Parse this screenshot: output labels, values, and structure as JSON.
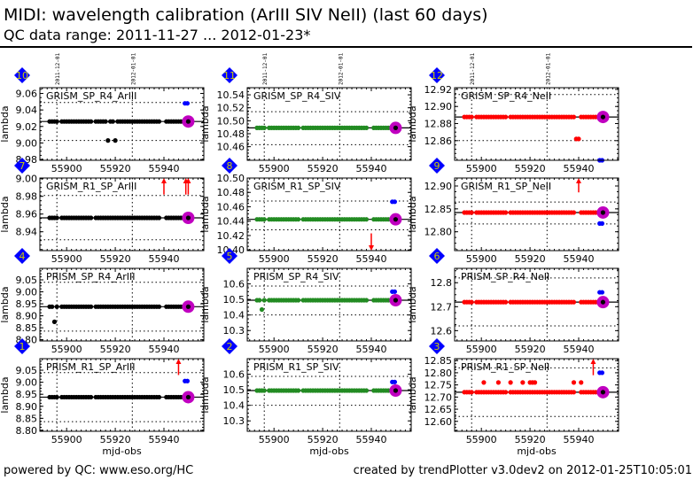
{
  "header": {
    "title": "MIDI: wavelength calibration (ArIII SIV NeII) (last 60 days)",
    "subtitle": "QC data range: 2011-11-27 ... 2012-01-23*"
  },
  "footer": {
    "left": "powered by QC: www.eso.org/HC",
    "right": "created by trendPlotter v3.0dev2 on 2012-01-25T10:05:01"
  },
  "colors": {
    "ArIII": "#000000",
    "SIV": "#228b22",
    "NeII": "#ff0000",
    "latest": "#c000c0",
    "reference": "#0000ff",
    "outlier_arrow": "#ff0000",
    "badge": "#0000ff",
    "badge_text": "#cccc00"
  },
  "chart_data": {
    "type": "scatter",
    "xlabel": "mjd-obs",
    "ylabel": "lambda",
    "xlim": [
      55889,
      55956.4
    ],
    "xticks": [
      55900,
      55920,
      55940
    ],
    "date_markers": [
      {
        "mjd": 55896,
        "label": "2011-12-01"
      },
      {
        "mjd": 55927,
        "label": "2012-01-01"
      }
    ],
    "days": [
      55893,
      55894,
      55895,
      55896,
      55898,
      55899,
      55900,
      55901,
      55902,
      55903,
      55904,
      55905,
      55906,
      55907,
      55908,
      55909,
      55910,
      55912,
      55913,
      55914,
      55915,
      55916,
      55917,
      55918,
      55919,
      55920,
      55921,
      55922,
      55923,
      55924,
      55925,
      55926,
      55927,
      55928,
      55929,
      55930,
      55931,
      55932,
      55933,
      55934,
      55935,
      55936,
      55937,
      55938,
      55941,
      55942,
      55943,
      55944,
      55945,
      55946,
      55947,
      55948,
      55949,
      55950
    ],
    "panels": [
      {
        "id": "10",
        "title": "GRISM_SP_R4_ArIII",
        "line": "ArIII",
        "ylim": [
          8.979,
          9.067
        ],
        "yticks": [
          8.98,
          9.0,
          9.02,
          9.04,
          9.06
        ],
        "ytick_labels": [
          "8.98",
          "9.00",
          "9.02",
          "9.04",
          "9.06"
        ],
        "value": 9.026,
        "thresholds": [
          9.003,
          9.049
        ],
        "reference": 9.048,
        "outliers": [
          [
            55917,
            9.003
          ],
          [
            55920,
            9.003
          ]
        ],
        "arrows": []
      },
      {
        "id": "11",
        "title": "GRISM_SP_R4_SIV",
        "line": "SIV",
        "ylim": [
          10.439,
          10.551
        ],
        "yticks": [
          10.46,
          10.48,
          10.5,
          10.52,
          10.54
        ],
        "ytick_labels": [
          "10.46",
          "10.48",
          "10.50",
          "10.52",
          "10.54"
        ],
        "value": 10.489,
        "thresholds": [
          10.463,
          10.514
        ],
        "reference": null,
        "outliers": [],
        "arrows": []
      },
      {
        "id": "12",
        "title": "GRISM_SP_R4_NeII",
        "line": "NeII",
        "ylim": [
          12.837,
          12.922
        ],
        "yticks": [
          12.86,
          12.88,
          12.9,
          12.92
        ],
        "ytick_labels": [
          "12.86",
          "12.88",
          "12.90",
          "12.92"
        ],
        "value": 12.8877,
        "thresholds": [
          12.86,
          12.914
        ],
        "reference": 12.837,
        "outliers": [
          [
            55939,
            12.862
          ],
          [
            55940,
            12.862
          ]
        ],
        "arrows": []
      },
      {
        "id": "7",
        "title": "GRISM_R1_SP_ArIII",
        "line": "ArIII",
        "ylim": [
          8.9187,
          9.0007
        ],
        "yticks": [
          8.94,
          8.96,
          8.98,
          9.0
        ],
        "ytick_labels": [
          "8.94",
          "8.96",
          "8.98",
          "9.00"
        ],
        "value": 8.9557,
        "thresholds": [
          8.931,
          8.981
        ],
        "reference": null,
        "outliers": [],
        "arrows": [
          {
            "mjd": 55940,
            "from": 8.982,
            "dir": "up"
          },
          {
            "mjd": 55949,
            "from": 8.982,
            "dir": "up"
          },
          {
            "mjd": 55950,
            "from": 8.982,
            "dir": "up"
          }
        ]
      },
      {
        "id": "8",
        "title": "GRISM_R1_SP_SIV",
        "line": "SIV",
        "ylim": [
          10.399,
          10.5
        ],
        "yticks": [
          10.4,
          10.42,
          10.44,
          10.46,
          10.48,
          10.5
        ],
        "ytick_labels": [
          "10.40",
          "10.42",
          "10.44",
          "10.46",
          "10.48",
          "10.50"
        ],
        "value": 10.4425,
        "thresholds": [
          10.428,
          10.468
        ],
        "reference": 10.467,
        "outliers": [],
        "arrows": [
          {
            "mjd": 55940,
            "from": 10.423,
            "dir": "down"
          }
        ]
      },
      {
        "id": "9",
        "title": "GRISM_R1_SP_NeII",
        "line": "NeII",
        "ylim": [
          12.7588,
          12.9174
        ],
        "yticks": [
          12.8,
          12.85,
          12.9
        ],
        "ytick_labels": [
          "12.80",
          "12.85",
          "12.90"
        ],
        "value": 12.842,
        "thresholds": [
          12.817,
          12.865
        ],
        "reference": 12.818,
        "outliers": [],
        "arrows": [
          {
            "mjd": 55940,
            "from": 12.886,
            "dir": "up"
          }
        ]
      },
      {
        "id": "4",
        "title": "PRISM_SP_R4_ArIII",
        "line": "ArIII",
        "ylim": [
          8.795,
          9.098
        ],
        "yticks": [
          8.8,
          8.85,
          8.9,
          8.95,
          9.0,
          9.05
        ],
        "ytick_labels": [
          "8.80",
          "8.85",
          "8.90",
          "8.95",
          "9.00",
          "9.05"
        ],
        "value": 8.938,
        "thresholds": [
          8.836,
          9.04
        ],
        "reference": null,
        "outliers": [
          [
            55895,
            8.875
          ]
        ],
        "arrows": []
      },
      {
        "id": "5",
        "title": "PRISM_SP_R4_SIV",
        "line": "SIV",
        "ylim": [
          10.233,
          10.7
        ],
        "yticks": [
          10.3,
          10.4,
          10.5,
          10.6
        ],
        "ytick_labels": [
          "10.3",
          "10.4",
          "10.5",
          "10.6"
        ],
        "value": 10.495,
        "thresholds": [
          10.4,
          10.586
        ],
        "reference": 10.55,
        "outliers": [
          [
            55895,
            10.435
          ]
        ],
        "arrows": []
      },
      {
        "id": "6",
        "title": "PRISM_SP_R4_NeII",
        "line": "NeII",
        "ylim": [
          12.557,
          12.86
        ],
        "yticks": [
          12.6,
          12.7,
          12.8
        ],
        "ytick_labels": [
          "12.6",
          "12.7",
          "12.8"
        ],
        "value": 12.719,
        "thresholds": [
          12.62,
          12.82
        ],
        "reference": 12.76,
        "outliers": [],
        "arrows": []
      },
      {
        "id": "1",
        "title": "PRISM_R1_SP_ArIII",
        "line": "ArIII",
        "ylim": [
          8.796,
          9.098
        ],
        "yticks": [
          8.8,
          8.85,
          8.9,
          8.95,
          9.0,
          9.05
        ],
        "ytick_labels": [
          "8.80",
          "8.85",
          "8.90",
          "8.95",
          "9.00",
          "9.05"
        ],
        "value": 8.938,
        "thresholds": [
          8.836,
          9.04
        ],
        "reference": 9.005,
        "outliers": [],
        "arrows": [
          {
            "mjd": 55946,
            "from": 9.03,
            "dir": "up"
          }
        ]
      },
      {
        "id": "2",
        "title": "PRISM_R1_SP_SIV",
        "line": "SIV",
        "ylim": [
          10.233,
          10.7
        ],
        "yticks": [
          10.3,
          10.4,
          10.5,
          10.6
        ],
        "ytick_labels": [
          "10.3",
          "10.4",
          "10.5",
          "10.6"
        ],
        "value": 10.495,
        "thresholds": [
          10.4,
          10.586
        ],
        "reference": 10.55,
        "outliers": [],
        "arrows": []
      },
      {
        "id": "3",
        "title": "PRISM_R1_SP_NeII",
        "line": "NeII",
        "ylim": [
          12.559,
          12.858
        ],
        "yticks": [
          12.6,
          12.65,
          12.7,
          12.75,
          12.8,
          12.85
        ],
        "ytick_labels": [
          "12.60",
          "12.65",
          "12.70",
          "12.75",
          "12.80",
          "12.85"
        ],
        "value": 12.72,
        "thresholds": [
          12.62,
          12.82
        ],
        "reference": 12.8,
        "outliers": [
          [
            55901,
            12.76
          ],
          [
            55907,
            12.76
          ],
          [
            55912,
            12.76
          ],
          [
            55917,
            12.76
          ],
          [
            55920,
            12.76
          ],
          [
            55921,
            12.76
          ],
          [
            55922,
            12.76
          ],
          [
            55938,
            12.76
          ],
          [
            55941,
            12.76
          ]
        ],
        "arrows": [
          {
            "mjd": 55946,
            "from": 12.79,
            "dir": "up"
          }
        ]
      }
    ]
  }
}
